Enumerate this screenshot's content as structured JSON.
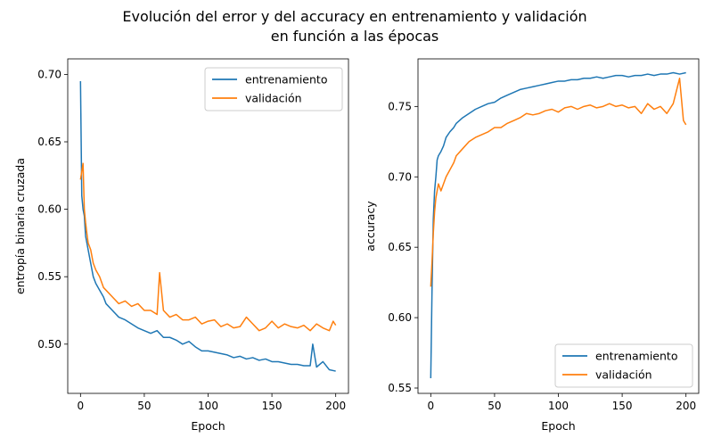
{
  "figure": {
    "title_line1": "Evolución del error y del accuracy en entrenamiento y validación",
    "title_line2": "en función a las épocas"
  },
  "colors": {
    "train": "#1f77b4",
    "val": "#ff7f0e"
  },
  "chart_data": [
    {
      "type": "line",
      "xlabel": "Epoch",
      "ylabel": "entropía binaria cruzada",
      "xlim": [
        -10,
        210
      ],
      "ylim": [
        0.4635,
        0.7115
      ],
      "xticks": [
        0,
        50,
        100,
        150,
        200
      ],
      "xtick_labels": [
        "0",
        "50",
        "100",
        "150",
        "200"
      ],
      "yticks": [
        0.5,
        0.55,
        0.6,
        0.65,
        0.7
      ],
      "ytick_labels": [
        "0.50",
        "0.55",
        "0.60",
        "0.65",
        "0.70"
      ],
      "legend_position": "top-right",
      "series": [
        {
          "name": "entrenamiento",
          "x": [
            0,
            1,
            2,
            3,
            4,
            5,
            6,
            8,
            10,
            12,
            15,
            18,
            20,
            25,
            30,
            35,
            40,
            45,
            50,
            55,
            60,
            65,
            70,
            75,
            80,
            85,
            90,
            95,
            100,
            105,
            110,
            115,
            120,
            125,
            130,
            135,
            140,
            145,
            150,
            155,
            160,
            165,
            170,
            175,
            180,
            182,
            185,
            190,
            195,
            200
          ],
          "values": [
            0.695,
            0.61,
            0.6,
            0.595,
            0.58,
            0.575,
            0.57,
            0.56,
            0.55,
            0.545,
            0.54,
            0.535,
            0.53,
            0.525,
            0.52,
            0.518,
            0.515,
            0.512,
            0.51,
            0.508,
            0.51,
            0.505,
            0.505,
            0.503,
            0.5,
            0.502,
            0.498,
            0.495,
            0.495,
            0.494,
            0.493,
            0.492,
            0.49,
            0.491,
            0.489,
            0.49,
            0.488,
            0.489,
            0.487,
            0.487,
            0.486,
            0.485,
            0.485,
            0.484,
            0.484,
            0.5,
            0.483,
            0.487,
            0.481,
            0.48
          ]
        },
        {
          "name": "validación",
          "x": [
            0,
            1,
            2,
            3,
            4,
            5,
            6,
            8,
            10,
            12,
            15,
            18,
            20,
            25,
            30,
            35,
            40,
            45,
            50,
            55,
            60,
            62,
            65,
            70,
            75,
            80,
            85,
            90,
            95,
            100,
            105,
            110,
            115,
            120,
            125,
            130,
            135,
            140,
            145,
            150,
            155,
            160,
            165,
            170,
            175,
            180,
            185,
            190,
            195,
            198,
            200
          ],
          "values": [
            0.622,
            0.628,
            0.634,
            0.6,
            0.59,
            0.582,
            0.575,
            0.57,
            0.56,
            0.555,
            0.55,
            0.542,
            0.54,
            0.535,
            0.53,
            0.532,
            0.528,
            0.53,
            0.525,
            0.525,
            0.522,
            0.553,
            0.525,
            0.52,
            0.522,
            0.518,
            0.518,
            0.52,
            0.515,
            0.517,
            0.518,
            0.513,
            0.515,
            0.512,
            0.513,
            0.52,
            0.515,
            0.51,
            0.512,
            0.517,
            0.512,
            0.515,
            0.513,
            0.512,
            0.514,
            0.51,
            0.515,
            0.512,
            0.51,
            0.517,
            0.514
          ]
        }
      ]
    },
    {
      "type": "line",
      "xlabel": "Epoch",
      "ylabel": "accuracy",
      "xlim": [
        -10,
        210
      ],
      "ylim": [
        0.5462,
        0.7838
      ],
      "xticks": [
        0,
        50,
        100,
        150,
        200
      ],
      "xtick_labels": [
        "0",
        "50",
        "100",
        "150",
        "200"
      ],
      "yticks": [
        0.55,
        0.6,
        0.65,
        0.7,
        0.75
      ],
      "ytick_labels": [
        "0.55",
        "0.60",
        "0.65",
        "0.70",
        "0.75"
      ],
      "legend_position": "bottom-right",
      "series": [
        {
          "name": "entrenamiento",
          "x": [
            0,
            1,
            2,
            3,
            4,
            5,
            6,
            8,
            10,
            12,
            15,
            18,
            20,
            25,
            30,
            35,
            40,
            45,
            50,
            55,
            60,
            65,
            70,
            75,
            80,
            85,
            90,
            95,
            100,
            105,
            110,
            115,
            120,
            125,
            130,
            135,
            140,
            145,
            150,
            155,
            160,
            165,
            170,
            175,
            180,
            185,
            190,
            195,
            200
          ],
          "values": [
            0.557,
            0.62,
            0.67,
            0.69,
            0.7,
            0.712,
            0.715,
            0.718,
            0.722,
            0.728,
            0.732,
            0.735,
            0.738,
            0.742,
            0.745,
            0.748,
            0.75,
            0.752,
            0.753,
            0.756,
            0.758,
            0.76,
            0.762,
            0.763,
            0.764,
            0.765,
            0.766,
            0.767,
            0.768,
            0.768,
            0.769,
            0.769,
            0.77,
            0.77,
            0.771,
            0.77,
            0.771,
            0.772,
            0.772,
            0.771,
            0.772,
            0.772,
            0.773,
            0.772,
            0.773,
            0.773,
            0.774,
            0.773,
            0.774
          ]
        },
        {
          "name": "validación",
          "x": [
            0,
            1,
            2,
            3,
            4,
            5,
            6,
            8,
            10,
            12,
            15,
            18,
            20,
            25,
            30,
            35,
            40,
            45,
            50,
            55,
            60,
            65,
            70,
            75,
            80,
            85,
            90,
            95,
            100,
            105,
            110,
            115,
            120,
            125,
            130,
            135,
            140,
            145,
            150,
            155,
            160,
            165,
            170,
            175,
            180,
            185,
            190,
            195,
            198,
            200
          ],
          "values": [
            0.622,
            0.64,
            0.66,
            0.675,
            0.685,
            0.69,
            0.695,
            0.69,
            0.695,
            0.7,
            0.705,
            0.71,
            0.715,
            0.72,
            0.725,
            0.728,
            0.73,
            0.732,
            0.735,
            0.735,
            0.738,
            0.74,
            0.742,
            0.745,
            0.744,
            0.745,
            0.747,
            0.748,
            0.746,
            0.749,
            0.75,
            0.748,
            0.75,
            0.751,
            0.749,
            0.75,
            0.752,
            0.75,
            0.751,
            0.749,
            0.75,
            0.745,
            0.752,
            0.748,
            0.75,
            0.745,
            0.752,
            0.77,
            0.74,
            0.737
          ]
        }
      ]
    }
  ]
}
